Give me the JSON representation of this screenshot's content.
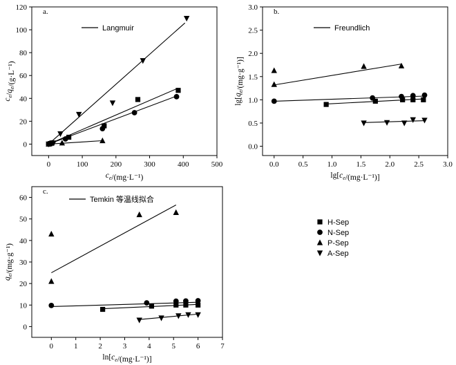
{
  "figure": {
    "legend": [
      {
        "name": "H-Sep",
        "marker": "square"
      },
      {
        "name": "N-Sep",
        "marker": "circle"
      },
      {
        "name": "P-Sep",
        "marker": "triangle-up"
      },
      {
        "name": "A-Sep",
        "marker": "triangle-down"
      }
    ]
  },
  "chart_data": [
    {
      "id": "langmuir",
      "type": "scatter",
      "panel_label": "a.",
      "title": "Langmuir",
      "xlabel": "ce/(mg·L⁻¹)",
      "ylabel": "ce/qe/(g·L⁻¹)",
      "xlim": [
        -50,
        500
      ],
      "ylim": [
        -10,
        120
      ],
      "xticks": [
        0,
        100,
        200,
        300,
        400,
        500
      ],
      "yticks": [
        0,
        20,
        40,
        60,
        80,
        100,
        120
      ],
      "series": [
        {
          "name": "H-Sep",
          "marker": "square",
          "points": [
            [
              0,
              0
            ],
            [
              5,
              0.5
            ],
            [
              10,
              1
            ],
            [
              60,
              6
            ],
            [
              165,
              16
            ],
            [
              265,
              39
            ],
            [
              385,
              47
            ]
          ],
          "fit": [
            [
              0,
              0
            ],
            [
              385,
              49
            ]
          ]
        },
        {
          "name": "N-Sep",
          "marker": "circle",
          "points": [
            [
              0,
              0
            ],
            [
              5,
              0.5
            ],
            [
              10,
              1
            ],
            [
              50,
              4.5
            ],
            [
              160,
              13.5
            ],
            [
              255,
              27.5
            ],
            [
              380,
              41.5
            ]
          ],
          "fit": [
            [
              0,
              0
            ],
            [
              380,
              42
            ]
          ]
        },
        {
          "name": "P-Sep",
          "marker": "triangle-up",
          "points": [
            [
              0,
              0
            ],
            [
              2,
              0.3
            ],
            [
              40,
              1
            ],
            [
              160,
              3
            ]
          ],
          "fit": [
            [
              0,
              0
            ],
            [
              160,
              3
            ]
          ]
        },
        {
          "name": "A-Sep",
          "marker": "triangle-down",
          "points": [
            [
              0,
              0
            ],
            [
              15,
              1
            ],
            [
              35,
              9
            ],
            [
              90,
              26
            ],
            [
              190,
              36
            ],
            [
              280,
              73
            ],
            [
              410,
              110
            ]
          ],
          "fit": [
            [
              0,
              0
            ],
            [
              405,
              106
            ]
          ]
        }
      ]
    },
    {
      "id": "freundlich",
      "type": "scatter",
      "panel_label": "b.",
      "title": "Freundlich",
      "xlabel": "lg[ce/(mg·L⁻¹)]",
      "ylabel": "lg[qe/(mg·g⁻¹)]",
      "xlim": [
        -0.2,
        3.0
      ],
      "ylim": [
        -0.2,
        3.0
      ],
      "xticks": [
        0,
        0.5,
        1.0,
        1.5,
        2.0,
        2.5,
        3.0
      ],
      "yticks": [
        0,
        0.5,
        1.0,
        1.5,
        2.0,
        2.5,
        3.0
      ],
      "series": [
        {
          "name": "H-Sep",
          "marker": "square",
          "points": [
            [
              0.9,
              0.9
            ],
            [
              1.75,
              0.97
            ],
            [
              2.22,
              1.0
            ],
            [
              2.4,
              1.0
            ],
            [
              2.58,
              1.0
            ]
          ],
          "fit": [
            [
              0.9,
              0.91
            ],
            [
              2.6,
              1.02
            ]
          ]
        },
        {
          "name": "N-Sep",
          "marker": "circle",
          "points": [
            [
              0,
              0.97
            ],
            [
              1.7,
              1.04
            ],
            [
              2.2,
              1.07
            ],
            [
              2.4,
              1.09
            ],
            [
              2.6,
              1.1
            ]
          ],
          "fit": [
            [
              0,
              0.97
            ],
            [
              2.6,
              1.08
            ]
          ]
        },
        {
          "name": "P-Sep",
          "marker": "triangle-up",
          "points": [
            [
              0,
              1.63
            ],
            [
              0,
              1.33
            ],
            [
              1.55,
              1.72
            ],
            [
              2.2,
              1.73
            ]
          ],
          "fit": [
            [
              0,
              1.32
            ],
            [
              2.2,
              1.77
            ]
          ]
        },
        {
          "name": "A-Sep",
          "marker": "triangle-down",
          "points": [
            [
              1.55,
              0.5
            ],
            [
              1.95,
              0.51
            ],
            [
              2.25,
              0.5
            ],
            [
              2.4,
              0.57
            ],
            [
              2.6,
              0.56
            ]
          ],
          "fit": [
            [
              1.55,
              0.51
            ],
            [
              2.6,
              0.55
            ]
          ]
        }
      ]
    },
    {
      "id": "temkin",
      "type": "scatter",
      "panel_label": "c.",
      "title": "Temkin 等温线拟合",
      "xlabel": "ln[ce/(mg·L⁻¹)]",
      "ylabel": "qe/(mg·g⁻¹)",
      "xlim": [
        -0.8,
        7.0
      ],
      "ylim": [
        -5,
        65
      ],
      "xticks": [
        0,
        1,
        2,
        3,
        4,
        5,
        6,
        7
      ],
      "yticks": [
        0,
        10,
        20,
        30,
        40,
        50,
        60
      ],
      "series": [
        {
          "name": "H-Sep",
          "marker": "square",
          "points": [
            [
              2.1,
              8
            ],
            [
              4.1,
              9.5
            ],
            [
              5.1,
              10
            ],
            [
              5.5,
              10
            ],
            [
              6.0,
              10
            ]
          ],
          "fit": [
            [
              2.1,
              8.3
            ],
            [
              6.0,
              10.3
            ]
          ]
        },
        {
          "name": "N-Sep",
          "marker": "circle",
          "points": [
            [
              0,
              9.8
            ],
            [
              3.9,
              11
            ],
            [
              5.1,
              11.8
            ],
            [
              5.5,
              11.9
            ],
            [
              6.0,
              12
            ]
          ],
          "fit": [
            [
              0,
              9.3
            ],
            [
              6.0,
              11.3
            ]
          ]
        },
        {
          "name": "P-Sep",
          "marker": "triangle-up",
          "points": [
            [
              0,
              43
            ],
            [
              0,
              21
            ],
            [
              3.6,
              52
            ],
            [
              5.1,
              53
            ]
          ],
          "fit": [
            [
              0,
              25
            ],
            [
              5.1,
              56.5
            ]
          ]
        },
        {
          "name": "A-Sep",
          "marker": "triangle-down",
          "points": [
            [
              3.6,
              3
            ],
            [
              4.5,
              4
            ],
            [
              5.2,
              5
            ],
            [
              5.6,
              5.5
            ],
            [
              6.0,
              5.5
            ]
          ],
          "fit": [
            [
              3.6,
              3.3
            ],
            [
              6.0,
              5.8
            ]
          ]
        }
      ]
    }
  ]
}
